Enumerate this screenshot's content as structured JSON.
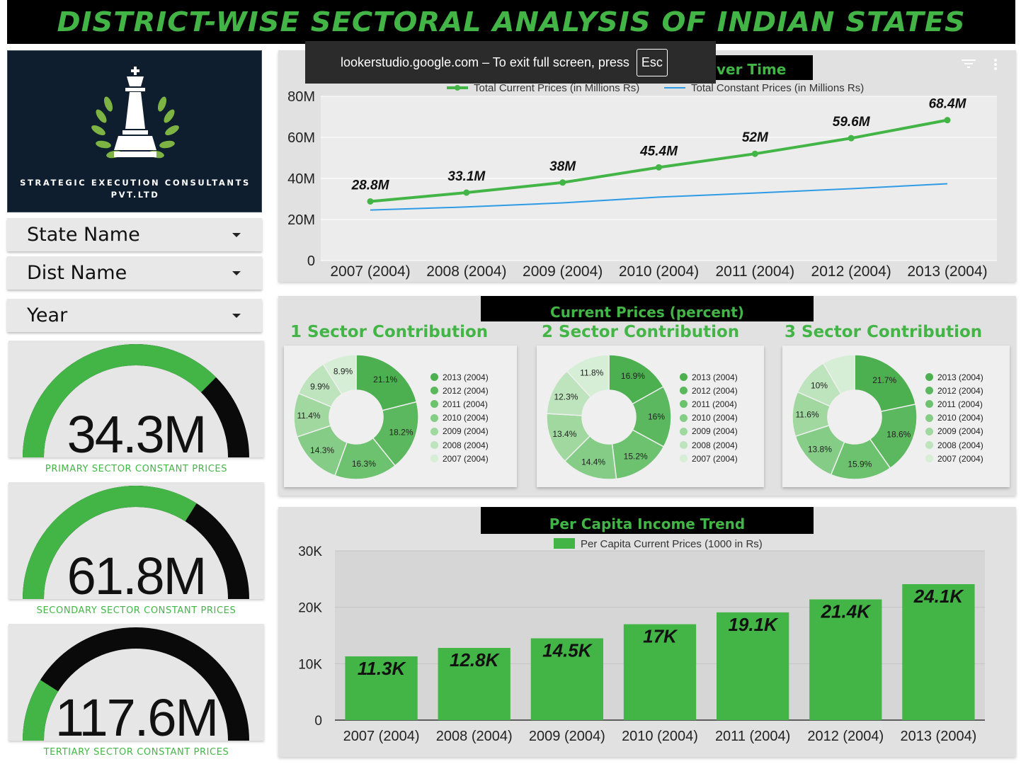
{
  "header": {
    "title": "DISTRICT-WISE SECTORAL ANALYSIS OF INDIAN STATES"
  },
  "logo": {
    "company_line1": "STRATEGIC EXECUTION CONSULTANTS",
    "company_line2": "PVT.LTD"
  },
  "filters": [
    {
      "label": "State Name"
    },
    {
      "label": "Dist Name"
    },
    {
      "label": "Year"
    }
  ],
  "gauges": [
    {
      "value": "34.3M",
      "label": "PRIMARY SECTOR CONSTANT PRICES",
      "fill_fraction": 0.75
    },
    {
      "value": "61.8M",
      "label": "SECONDARY SECTOR CONSTANT PRICES",
      "fill_fraction": 0.68
    },
    {
      "value": "117.6M",
      "label": "TERTIARY SECTOR CONSTANT PRICES",
      "fill_fraction": 0.18
    }
  ],
  "fullscreen_notice": {
    "text": "lookerstudio.google.com – To exit full screen, press",
    "key": "Esc"
  },
  "line_panel": {
    "title_fragment": "ver Time"
  },
  "pie_panel": {
    "banner": "Current Prices (percent)",
    "titles": [
      "1 Sector Contribution",
      "2 Sector Contribution",
      "3 Sector Contribution"
    ]
  },
  "bar_panel": {
    "banner": "Per Capita Income Trend"
  },
  "colors": {
    "accent_green": "#43b547",
    "line_blue": "#2e9be6",
    "pie_shades": [
      "#4caf50",
      "#5cb85e",
      "#6dc26f",
      "#85cc86",
      "#a0d8a0",
      "#bde4bc",
      "#d6eed5"
    ]
  },
  "chart_data": [
    {
      "type": "line",
      "title": "",
      "categories": [
        "2007 (2004)",
        "2008 (2004)",
        "2009 (2004)",
        "2010 (2004)",
        "2011 (2004)",
        "2012 (2004)",
        "2013 (2004)"
      ],
      "series": [
        {
          "name": "Total Current Prices (in Millions Rs)",
          "values": [
            28.8,
            33.1,
            38,
            45.4,
            52,
            59.6,
            68.4
          ],
          "labels": [
            "28.8M",
            "33.1M",
            "38M",
            "45.4M",
            "52M",
            "59.6M",
            "68.4M"
          ]
        },
        {
          "name": "Total Constant Prices (in Millions Rs)",
          "values": [
            24.6,
            26.1,
            28.1,
            30.9,
            32.9,
            35.0,
            37.4
          ]
        }
      ],
      "ylim": [
        0,
        80
      ],
      "yticks": [
        "0",
        "20M",
        "40M",
        "60M",
        "80M"
      ],
      "legend": "top"
    },
    {
      "type": "pie",
      "title": "1 Sector Contribution",
      "labels": [
        "2013 (2004)",
        "2012 (2004)",
        "2011 (2004)",
        "2010 (2004)",
        "2009 (2004)",
        "2008 (2004)",
        "2007 (2004)"
      ],
      "values": [
        21.1,
        18.2,
        16.3,
        14.3,
        11.4,
        9.9,
        8.9
      ],
      "value_labels": [
        "21.1%",
        "18.2%",
        "16.3%",
        "14.3%",
        "11.4%",
        "9.9%",
        "8.9%"
      ]
    },
    {
      "type": "pie",
      "title": "2 Sector Contribution",
      "labels": [
        "2013 (2004)",
        "2012 (2004)",
        "2011 (2004)",
        "2010 (2004)",
        "2009 (2004)",
        "2008 (2004)",
        "2007 (2004)"
      ],
      "values": [
        16.9,
        16,
        15.2,
        14.4,
        13.4,
        12.3,
        11.8
      ],
      "value_labels": [
        "16.9%",
        "16%",
        "15.2%",
        "14.4%",
        "13.4%",
        "12.3%",
        "11.8%"
      ]
    },
    {
      "type": "pie",
      "title": "3 Sector Contribution",
      "labels": [
        "2013 (2004)",
        "2012 (2004)",
        "2011 (2004)",
        "2010 (2004)",
        "2009 (2004)",
        "2008 (2004)",
        "2007 (2004)"
      ],
      "values": [
        21.7,
        18.6,
        15.9,
        13.8,
        11.6,
        10,
        8.4
      ],
      "value_labels": [
        "21.7%",
        "18.6%",
        "15.9%",
        "13.8%",
        "11.6%",
        "10%",
        ""
      ]
    },
    {
      "type": "bar",
      "title": "Per Capita Income Trend",
      "categories": [
        "2007 (2004)",
        "2008 (2004)",
        "2009 (2004)",
        "2010 (2004)",
        "2011 (2004)",
        "2012 (2004)",
        "2013 (2004)"
      ],
      "series": [
        {
          "name": "Per Capita Current Prices (1000 in Rs)",
          "values": [
            11.3,
            12.8,
            14.5,
            17,
            19.1,
            21.4,
            24.1
          ],
          "labels": [
            "11.3K",
            "12.8K",
            "14.5K",
            "17K",
            "19.1K",
            "21.4K",
            "24.1K"
          ]
        }
      ],
      "ylim": [
        0,
        30
      ],
      "yticks": [
        "0",
        "10K",
        "20K",
        "30K"
      ],
      "legend": "top"
    }
  ]
}
